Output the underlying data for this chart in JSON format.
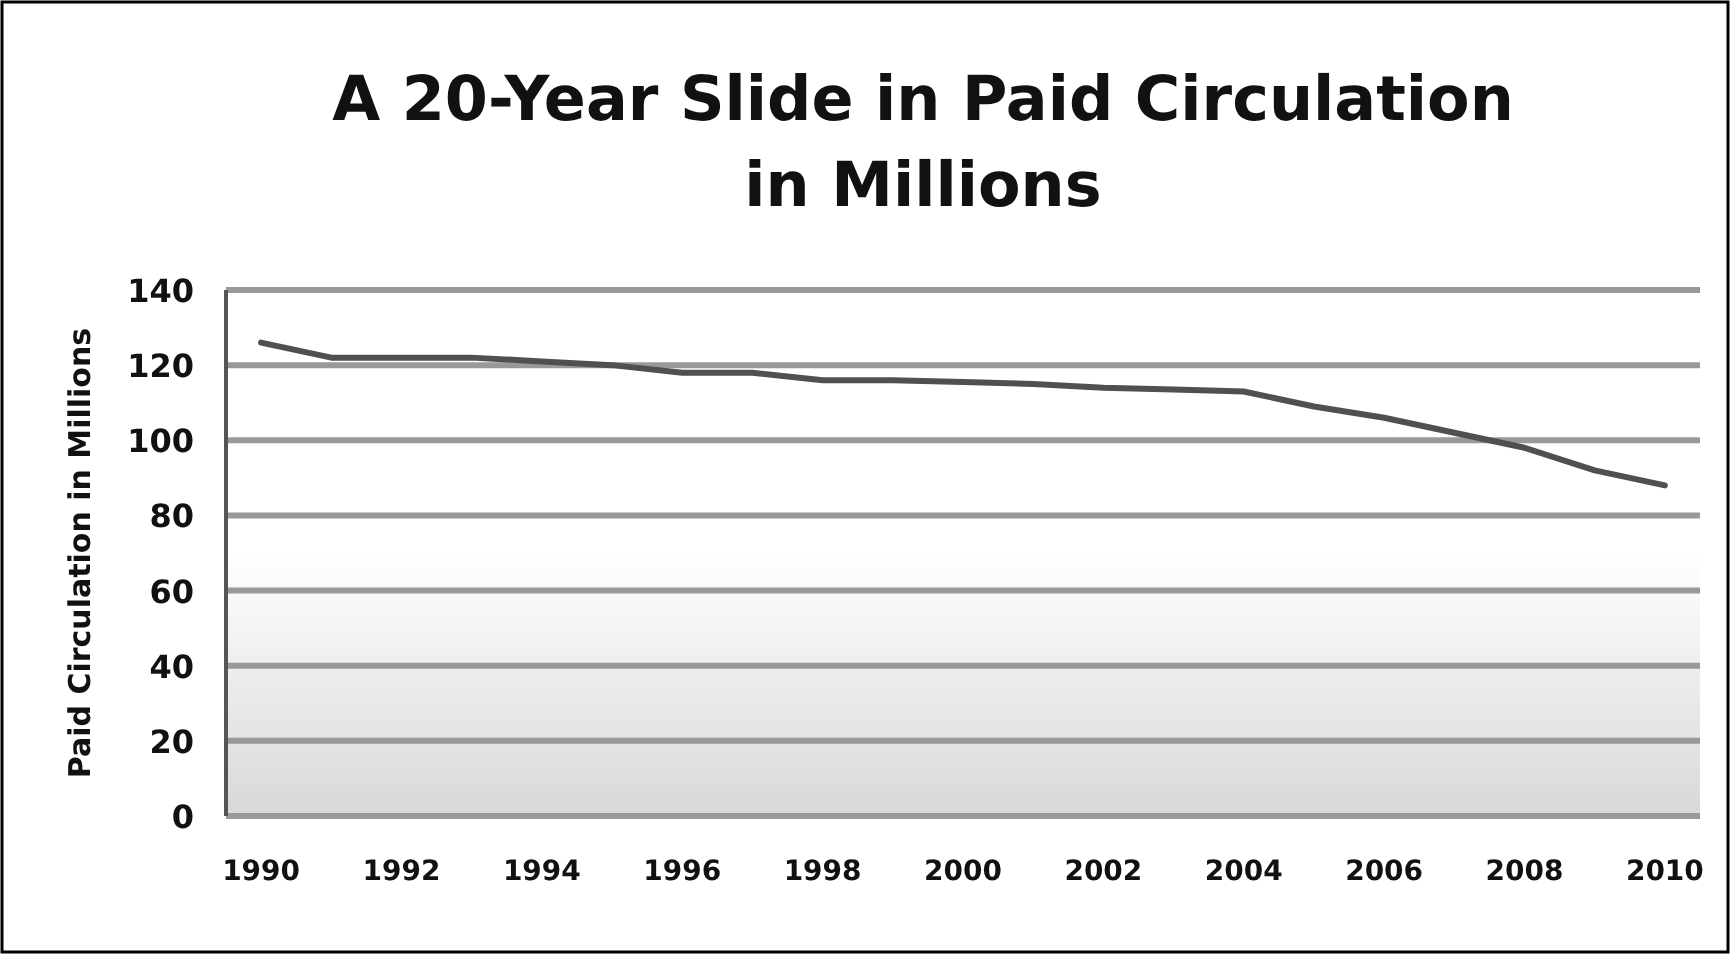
{
  "chart_data": {
    "type": "line",
    "title": "A 20-Year Slide in Paid Circulation\nin Millions",
    "ylabel": "Paid Circulation in Millions",
    "x": [
      1990,
      1991,
      1992,
      1993,
      1994,
      1995,
      1996,
      1997,
      1998,
      1999,
      2000,
      2001,
      2002,
      2003,
      2004,
      2005,
      2006,
      2007,
      2008,
      2009,
      2010
    ],
    "series": [
      {
        "color": "#505050",
        "values": [
          126,
          122,
          122,
          122,
          121,
          120,
          118,
          118,
          116,
          116,
          115.5,
          115,
          114,
          113.5,
          113,
          109,
          106,
          102,
          98,
          92,
          88
        ]
      }
    ],
    "xlim": [
      1989.5,
      2010.5
    ],
    "xticks": [
      1990,
      1992,
      1994,
      1996,
      1998,
      2000,
      2002,
      2004,
      2006,
      2008,
      2010
    ],
    "ylim": [
      0,
      140
    ],
    "yticks": [
      0,
      20,
      40,
      60,
      80,
      100,
      120,
      140
    ],
    "grid": "y",
    "marker": "none",
    "line_style": "solid"
  }
}
